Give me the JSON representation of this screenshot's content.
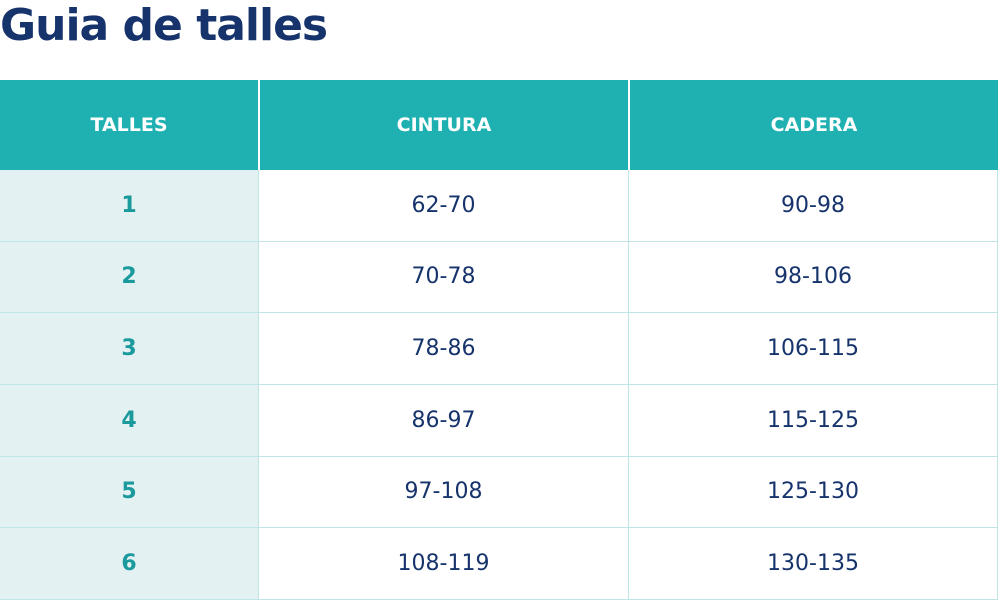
{
  "header": {
    "title": "Guia de talles"
  },
  "table": {
    "columns": [
      "TALLES",
      "CINTURA",
      "CADERA"
    ],
    "rows": [
      [
        "1",
        "62-70",
        "90-98"
      ],
      [
        "2",
        "70-78",
        "98-106"
      ],
      [
        "3",
        "78-86",
        "106-115"
      ],
      [
        "4",
        "86-97",
        "115-125"
      ],
      [
        "5",
        "97-108",
        "125-130"
      ],
      [
        "6",
        "108-119",
        "130-135"
      ]
    ]
  }
}
